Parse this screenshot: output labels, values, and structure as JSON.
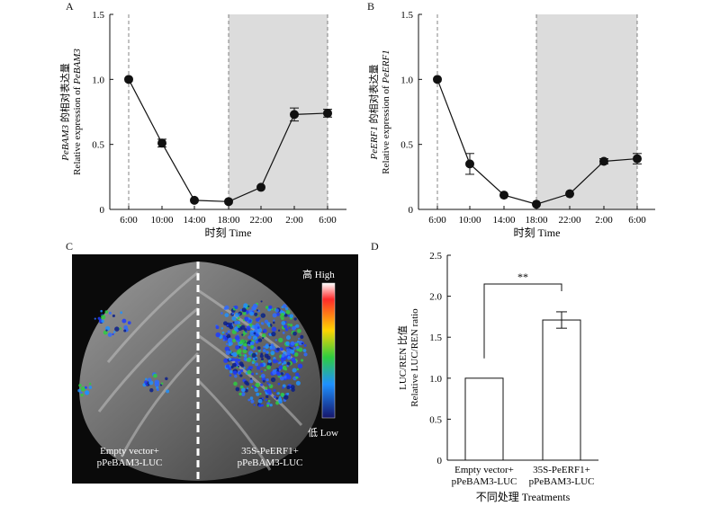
{
  "panels": {
    "A": "A",
    "B": "B",
    "C": "C",
    "D": "D"
  },
  "chart_data": [
    {
      "panel": "A",
      "type": "line",
      "ylabel_cn_gene": "PeBAM3",
      "ylabel_cn": "的相对表达量",
      "ylabel_en_prefix": "Relative expression of ",
      "ylabel_en_gene": "PeBAM3",
      "xlabel": "时刻 Time",
      "categories": [
        "6:00",
        "10:00",
        "14:00",
        "18:00",
        "22:00",
        "2:00",
        "6:00"
      ],
      "values": [
        1.0,
        0.51,
        0.07,
        0.06,
        0.17,
        0.73,
        0.74
      ],
      "errors": [
        0.0,
        0.03,
        0.0,
        0.0,
        0.0,
        0.05,
        0.03
      ],
      "ylim": [
        0,
        1.5
      ],
      "yticks": [
        "0",
        "0.5",
        "1.0",
        "1.5"
      ],
      "dark_period": [
        "18:00",
        "6:00"
      ]
    },
    {
      "panel": "B",
      "type": "line",
      "ylabel_cn_gene": "PeERF1",
      "ylabel_cn": "的相对表达量",
      "ylabel_en_prefix": "Relative expression of ",
      "ylabel_en_gene": "PeERF1",
      "xlabel": "时刻 Time",
      "categories": [
        "6:00",
        "10:00",
        "14:00",
        "18:00",
        "22:00",
        "2:00",
        "6:00"
      ],
      "values": [
        1.0,
        0.35,
        0.11,
        0.04,
        0.12,
        0.37,
        0.39
      ],
      "errors": [
        0.0,
        0.08,
        0.0,
        0.0,
        0.0,
        0.02,
        0.04
      ],
      "ylim": [
        0,
        1.5
      ],
      "yticks": [
        "0",
        "0.5",
        "1.0",
        "1.5"
      ],
      "dark_period": [
        "18:00",
        "6:00"
      ]
    },
    {
      "panel": "D",
      "type": "bar",
      "ylabel_cn": "LUC/REN 比值",
      "ylabel_en": "Relative LUC/REN ratio",
      "xlabel": "不同处理 Treatments",
      "categories": [
        [
          "Empty vector+",
          "pPeBAM3-LUC"
        ],
        [
          "35S-PeERF1+",
          "pPeBAM3-LUC"
        ]
      ],
      "values": [
        1.0,
        1.71
      ],
      "errors": [
        0.0,
        0.1
      ],
      "ylim": [
        0,
        2.5
      ],
      "yticks": [
        "0",
        "0.5",
        "1.0",
        "1.5",
        "2.0",
        "2.5"
      ],
      "significance": "**"
    }
  ],
  "photo": {
    "left_label": [
      "Empty vector+",
      "pPeBAM3-LUC"
    ],
    "right_label": [
      "35S-PeERF1+",
      "pPeBAM3-LUC"
    ],
    "colorbar_high": "高 High",
    "colorbar_low": "低 Low"
  }
}
